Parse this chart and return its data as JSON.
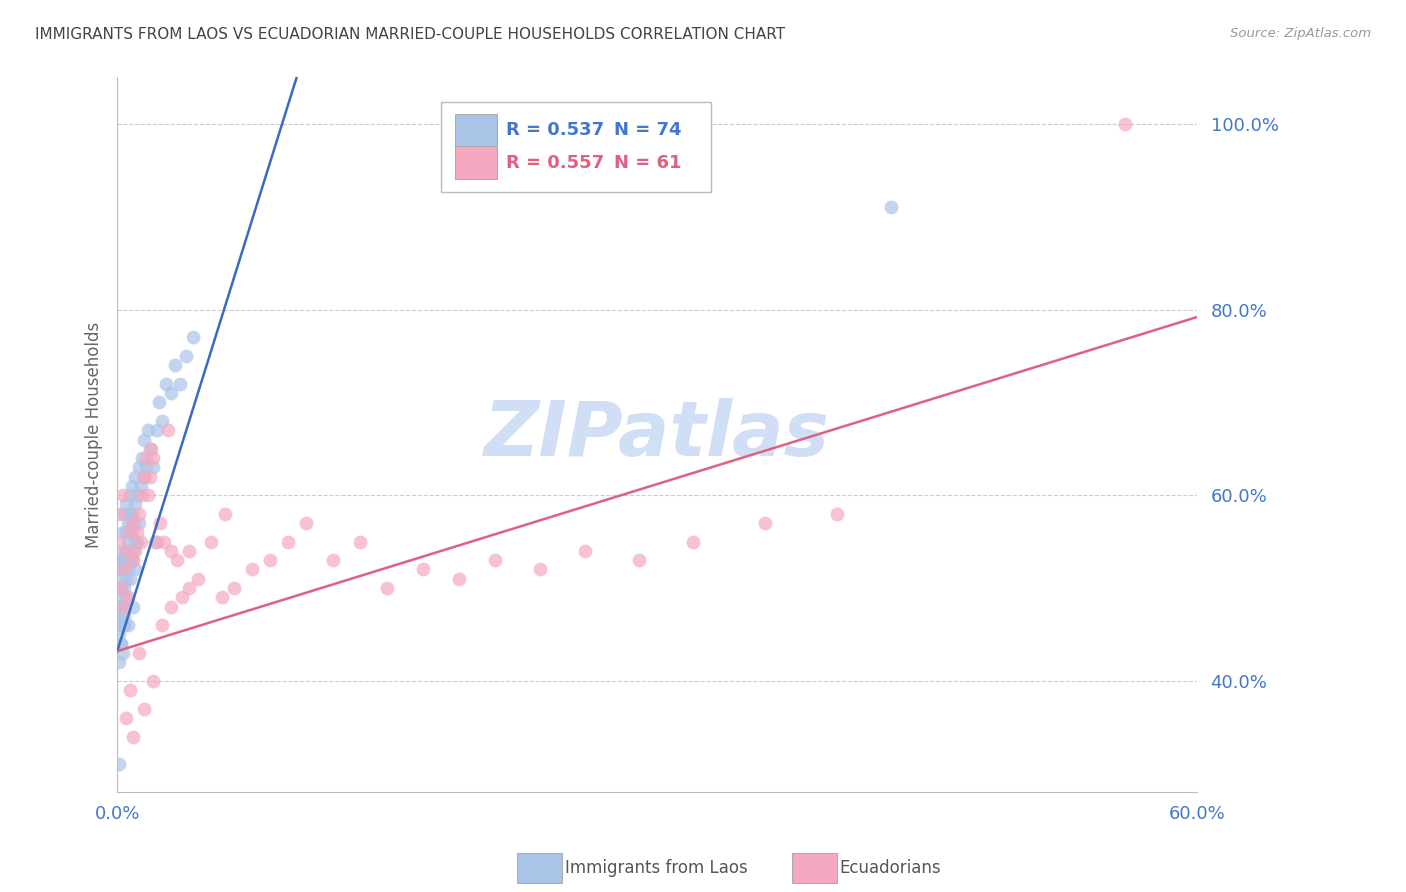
{
  "title": "IMMIGRANTS FROM LAOS VS ECUADORIAN MARRIED-COUPLE HOUSEHOLDS CORRELATION CHART",
  "source": "Source: ZipAtlas.com",
  "ylabel": "Married-couple Households",
  "xlim": [
    0.0,
    0.6
  ],
  "ylim": [
    0.28,
    1.05
  ],
  "yticks": [
    0.4,
    0.6,
    0.8,
    1.0
  ],
  "xticks": [
    0.0,
    0.12,
    0.24,
    0.36,
    0.48,
    0.6
  ],
  "ytick_labels": [
    "40.0%",
    "60.0%",
    "80.0%",
    "100.0%"
  ],
  "xtick_labels_show": [
    "0.0%",
    "60.0%"
  ],
  "blue_color": "#aac4e8",
  "pink_color": "#f4a8bf",
  "blue_line_color": "#3a6bbf",
  "pink_line_color": "#e06080",
  "watermark_color": "#d0dff5",
  "axis_label_color": "#4477cc",
  "title_color": "#444444",
  "grid_color": "#cccccc",
  "legend_R_blue": "R = 0.537",
  "legend_N_blue": "N = 74",
  "legend_R_pink": "R = 0.557",
  "legend_N_pink": "N = 61",
  "blue_intercept": 0.432,
  "blue_slope": 6.2,
  "pink_intercept": 0.432,
  "pink_slope": 0.6,
  "blue_scatter_x": [
    0.001,
    0.001,
    0.001,
    0.001,
    0.001,
    0.002,
    0.002,
    0.002,
    0.002,
    0.002,
    0.002,
    0.003,
    0.003,
    0.003,
    0.003,
    0.003,
    0.003,
    0.004,
    0.004,
    0.004,
    0.004,
    0.004,
    0.005,
    0.005,
    0.005,
    0.005,
    0.006,
    0.006,
    0.006,
    0.007,
    0.007,
    0.007,
    0.008,
    0.008,
    0.008,
    0.009,
    0.009,
    0.01,
    0.01,
    0.01,
    0.011,
    0.011,
    0.012,
    0.012,
    0.013,
    0.014,
    0.015,
    0.015,
    0.016,
    0.017,
    0.018,
    0.02,
    0.021,
    0.022,
    0.023,
    0.025,
    0.027,
    0.03,
    0.032,
    0.035,
    0.038,
    0.042,
    0.001,
    0.002,
    0.003,
    0.004,
    0.005,
    0.006,
    0.007,
    0.008,
    0.009,
    0.01,
    0.43,
    0.001
  ],
  "blue_scatter_y": [
    0.5,
    0.47,
    0.52,
    0.48,
    0.45,
    0.53,
    0.5,
    0.48,
    0.46,
    0.51,
    0.44,
    0.52,
    0.54,
    0.49,
    0.46,
    0.53,
    0.56,
    0.48,
    0.5,
    0.47,
    0.53,
    0.58,
    0.54,
    0.51,
    0.56,
    0.59,
    0.55,
    0.52,
    0.57,
    0.53,
    0.58,
    0.6,
    0.56,
    0.58,
    0.61,
    0.54,
    0.57,
    0.55,
    0.59,
    0.62,
    0.55,
    0.6,
    0.57,
    0.63,
    0.61,
    0.64,
    0.62,
    0.66,
    0.63,
    0.67,
    0.65,
    0.63,
    0.55,
    0.67,
    0.7,
    0.68,
    0.72,
    0.71,
    0.74,
    0.72,
    0.75,
    0.77,
    0.42,
    0.44,
    0.43,
    0.46,
    0.49,
    0.46,
    0.51,
    0.53,
    0.48,
    0.52,
    0.91,
    0.31
  ],
  "pink_scatter_x": [
    0.001,
    0.002,
    0.003,
    0.004,
    0.005,
    0.006,
    0.007,
    0.008,
    0.009,
    0.01,
    0.011,
    0.012,
    0.013,
    0.014,
    0.015,
    0.016,
    0.017,
    0.018,
    0.019,
    0.02,
    0.022,
    0.024,
    0.026,
    0.028,
    0.03,
    0.033,
    0.036,
    0.04,
    0.045,
    0.052,
    0.058,
    0.065,
    0.075,
    0.085,
    0.095,
    0.105,
    0.12,
    0.135,
    0.15,
    0.17,
    0.19,
    0.21,
    0.235,
    0.26,
    0.29,
    0.32,
    0.36,
    0.4,
    0.001,
    0.003,
    0.005,
    0.007,
    0.009,
    0.012,
    0.015,
    0.02,
    0.025,
    0.03,
    0.04,
    0.06,
    0.56
  ],
  "pink_scatter_y": [
    0.55,
    0.5,
    0.48,
    0.52,
    0.54,
    0.49,
    0.56,
    0.57,
    0.53,
    0.54,
    0.56,
    0.58,
    0.55,
    0.6,
    0.62,
    0.64,
    0.6,
    0.62,
    0.65,
    0.64,
    0.55,
    0.57,
    0.55,
    0.67,
    0.54,
    0.53,
    0.49,
    0.54,
    0.51,
    0.55,
    0.49,
    0.5,
    0.52,
    0.53,
    0.55,
    0.57,
    0.53,
    0.55,
    0.5,
    0.52,
    0.51,
    0.53,
    0.52,
    0.54,
    0.53,
    0.55,
    0.57,
    0.58,
    0.58,
    0.6,
    0.36,
    0.39,
    0.34,
    0.43,
    0.37,
    0.4,
    0.46,
    0.48,
    0.5,
    0.58,
    1.0
  ]
}
